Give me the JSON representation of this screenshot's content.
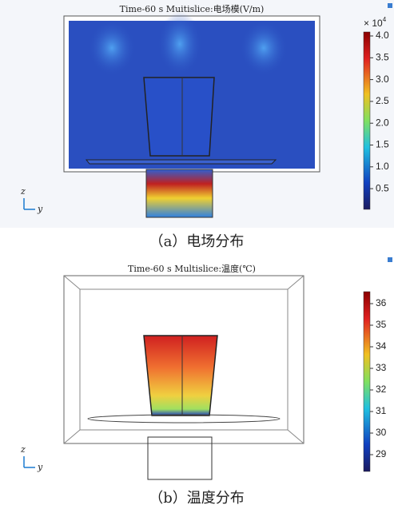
{
  "panels": [
    {
      "title": "Time-60 s Muitislice:电场模(V/m)",
      "caption": "（a）电场分布",
      "colorbar": {
        "multiplier": "× 10",
        "exponent": "4",
        "ticks": [
          "4.0",
          "3.5",
          "3.0",
          "2.5",
          "2.0",
          "1.5",
          "1.0",
          "0.5"
        ]
      },
      "axes": {
        "z": "z",
        "y": "y"
      }
    },
    {
      "title": "Time-60 s Multislice:温度(℃)",
      "caption": "（b）温度分布",
      "colorbar": {
        "ticks": [
          "36",
          "35",
          "34",
          "33",
          "32",
          "31",
          "30",
          "29"
        ]
      },
      "axes": {
        "z": "z",
        "y": "y"
      }
    }
  ]
}
